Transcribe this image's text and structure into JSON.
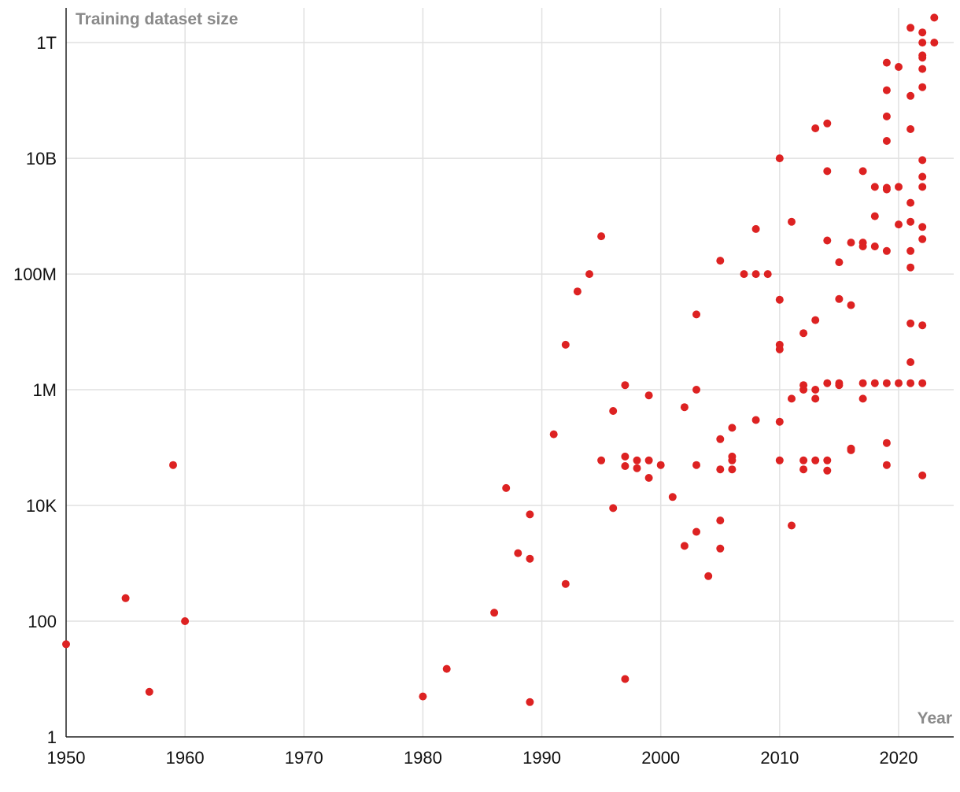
{
  "chart_data": {
    "type": "scatter",
    "title": "",
    "xlabel": "Year",
    "ylabel": "Training dataset size",
    "xlim": [
      1950,
      2024.5
    ],
    "ylim_log10": [
      0,
      12.6
    ],
    "y_scale": "log",
    "grid": true,
    "colors": {
      "points": "#dd2222",
      "grid": "#e1e1e1",
      "axis": "#222222",
      "axis_title": "#8a8a8a"
    },
    "x_ticks": [
      {
        "value": 1950,
        "label": "1950"
      },
      {
        "value": 1960,
        "label": "1960"
      },
      {
        "value": 1970,
        "label": "1970"
      },
      {
        "value": 1980,
        "label": "1980"
      },
      {
        "value": 1990,
        "label": "1990"
      },
      {
        "value": 2000,
        "label": "2000"
      },
      {
        "value": 2010,
        "label": "2010"
      },
      {
        "value": 2020,
        "label": "2020"
      }
    ],
    "y_ticks": [
      {
        "log10": 0,
        "label": "1"
      },
      {
        "log10": 2,
        "label": "100"
      },
      {
        "log10": 4,
        "label": "10K"
      },
      {
        "log10": 6,
        "label": "1M"
      },
      {
        "log10": 8,
        "label": "100M"
      },
      {
        "log10": 10,
        "label": "10B"
      },
      {
        "log10": 12,
        "label": "1T"
      }
    ],
    "series": [
      {
        "name": "Training dataset size",
        "points": [
          [
            1950,
            40
          ],
          [
            1955,
            250
          ],
          [
            1957,
            6
          ],
          [
            1959,
            50000
          ],
          [
            1960,
            100
          ],
          [
            1980,
            5
          ],
          [
            1982,
            15
          ],
          [
            1986,
            140
          ],
          [
            1987,
            20000
          ],
          [
            1988,
            1500
          ],
          [
            1989,
            7000
          ],
          [
            1989,
            1200
          ],
          [
            1989,
            4
          ],
          [
            1991,
            170000
          ],
          [
            1992,
            6000000
          ],
          [
            1992,
            440
          ],
          [
            1993,
            50000000
          ],
          [
            1994,
            100000000
          ],
          [
            1995,
            450000000
          ],
          [
            1995,
            60000
          ],
          [
            1996,
            430000
          ],
          [
            1996,
            9000
          ],
          [
            1997,
            1200000
          ],
          [
            1997,
            70000
          ],
          [
            1997,
            48000
          ],
          [
            1997,
            10
          ],
          [
            1998,
            60000
          ],
          [
            1998,
            44000
          ],
          [
            1999,
            800000
          ],
          [
            1999,
            60000
          ],
          [
            1999,
            30000
          ],
          [
            2000,
            50000
          ],
          [
            2001,
            14000
          ],
          [
            2002,
            500000
          ],
          [
            2002,
            2000
          ],
          [
            2003,
            20000000
          ],
          [
            2003,
            1000000
          ],
          [
            2003,
            50000
          ],
          [
            2003,
            3500
          ],
          [
            2004,
            600
          ],
          [
            2005,
            170000000
          ],
          [
            2005,
            140000
          ],
          [
            2005,
            42000
          ],
          [
            2005,
            5500
          ],
          [
            2005,
            1800
          ],
          [
            2006,
            220000
          ],
          [
            2006,
            70000
          ],
          [
            2006,
            60000
          ],
          [
            2006,
            42000
          ],
          [
            2007,
            100000000
          ],
          [
            2008,
            600000000
          ],
          [
            2008,
            100000000
          ],
          [
            2008,
            300000
          ],
          [
            2009,
            100000000
          ],
          [
            2010,
            10000000000
          ],
          [
            2010,
            36000000
          ],
          [
            2010,
            6000000
          ],
          [
            2010,
            5000000
          ],
          [
            2010,
            280000
          ],
          [
            2010,
            60000
          ],
          [
            2011,
            800000000
          ],
          [
            2011,
            700000
          ],
          [
            2011,
            4500
          ],
          [
            2012,
            9500000
          ],
          [
            2012,
            1200000
          ],
          [
            2012,
            1000000
          ],
          [
            2012,
            60000
          ],
          [
            2012,
            42000
          ],
          [
            2013,
            33000000000
          ],
          [
            2013,
            16000000
          ],
          [
            2013,
            1000000
          ],
          [
            2013,
            700000
          ],
          [
            2013,
            60000
          ],
          [
            2014,
            40000000000
          ],
          [
            2014,
            6000000000
          ],
          [
            2014,
            380000000
          ],
          [
            2014,
            1300000
          ],
          [
            2014,
            60000
          ],
          [
            2014,
            40000
          ],
          [
            2015,
            160000000
          ],
          [
            2015,
            37000000
          ],
          [
            2015,
            1300000
          ],
          [
            2015,
            1200000
          ],
          [
            2016,
            350000000
          ],
          [
            2016,
            29000000
          ],
          [
            2016,
            96000
          ],
          [
            2016,
            90000
          ],
          [
            2017,
            6000000000
          ],
          [
            2017,
            350000000
          ],
          [
            2017,
            300000000
          ],
          [
            2017,
            1300000
          ],
          [
            2017,
            700000
          ],
          [
            2018,
            3200000000
          ],
          [
            2018,
            1000000000
          ],
          [
            2018,
            300000000
          ],
          [
            2018,
            1300000
          ],
          [
            2019,
            450000000000
          ],
          [
            2019,
            150000000000
          ],
          [
            2019,
            53000000000
          ],
          [
            2019,
            20000000000
          ],
          [
            2019,
            3100000000
          ],
          [
            2019,
            2900000000
          ],
          [
            2019,
            250000000
          ],
          [
            2019,
            1300000
          ],
          [
            2019,
            120000
          ],
          [
            2019,
            50000
          ],
          [
            2020,
            380000000000
          ],
          [
            2020,
            3200000000
          ],
          [
            2020,
            720000000
          ],
          [
            2020,
            1300000
          ],
          [
            2021,
            1800000000000
          ],
          [
            2021,
            120000000000
          ],
          [
            2021,
            32000000000
          ],
          [
            2021,
            1700000000
          ],
          [
            2021,
            800000000
          ],
          [
            2021,
            250000000
          ],
          [
            2021,
            130000000
          ],
          [
            2021,
            14000000
          ],
          [
            2021,
            3000000
          ],
          [
            2021,
            1300000
          ],
          [
            2022,
            1500000000000
          ],
          [
            2022,
            1000000000000
          ],
          [
            2022,
            600000000000
          ],
          [
            2022,
            550000000000
          ],
          [
            2022,
            350000000000
          ],
          [
            2022,
            170000000000
          ],
          [
            2022,
            9300000000
          ],
          [
            2022,
            4800000000
          ],
          [
            2022,
            3200000000
          ],
          [
            2022,
            650000000
          ],
          [
            2022,
            400000000
          ],
          [
            2022,
            13000000
          ],
          [
            2022,
            1300000
          ],
          [
            2022,
            33000
          ],
          [
            2023,
            2700000000000
          ],
          [
            2023,
            1000000000000
          ]
        ]
      }
    ]
  }
}
